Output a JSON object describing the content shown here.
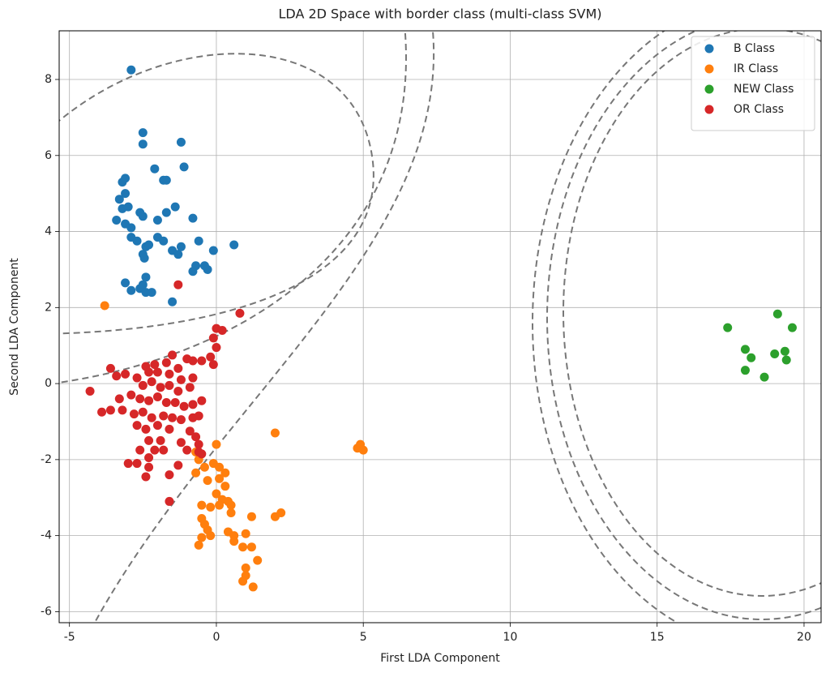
{
  "chart_data": {
    "type": "scatter",
    "title": "LDA 2D Space with border class (multi-class SVM)",
    "x_label": "First LDA Component",
    "y_label": "Second LDA Component",
    "xlim": [
      -5.35,
      20.58
    ],
    "ylim": [
      -6.29,
      9.28
    ],
    "xticks": [
      -5,
      0,
      5,
      10,
      15,
      20
    ],
    "yticks": [
      -6,
      -4,
      -2,
      0,
      2,
      4,
      6,
      8
    ],
    "grid": true,
    "legend": "upper right",
    "series": [
      {
        "name": "B Class",
        "color": "#1f77b4",
        "x": [
          -2.9,
          -2.5,
          -2.5,
          -1.2,
          -1.1,
          -2.1,
          -1.8,
          -1.7,
          -3.2,
          -3.1,
          -3.1,
          -3.3,
          -3.2,
          -3.0,
          -2.6,
          -2.5,
          -1.4,
          -1.7,
          -2.0,
          -0.8,
          -3.4,
          -3.1,
          -2.9,
          -2.9,
          -2.7,
          -2.4,
          -2.3,
          -2.5,
          -2.45,
          -2.0,
          -1.8,
          -1.5,
          -1.2,
          -1.3,
          -0.6,
          -0.1,
          0.6,
          -0.7,
          -0.4,
          -0.8,
          -0.3,
          -3.1,
          -2.9,
          -2.6,
          -2.5,
          -2.4,
          -2.2,
          -2.4,
          -1.5
        ],
        "values": [
          8.25,
          6.6,
          6.3,
          6.35,
          5.7,
          5.65,
          5.35,
          5.35,
          5.3,
          5.4,
          5.0,
          4.85,
          4.6,
          4.65,
          4.5,
          4.4,
          4.65,
          4.5,
          4.3,
          4.35,
          4.3,
          4.2,
          4.1,
          3.85,
          3.75,
          3.6,
          3.65,
          3.4,
          3.3,
          3.85,
          3.75,
          3.5,
          3.6,
          3.4,
          3.75,
          3.5,
          3.65,
          3.1,
          3.1,
          2.95,
          3.0,
          2.65,
          2.45,
          2.5,
          2.6,
          2.4,
          2.4,
          2.8,
          2.15
        ]
      },
      {
        "name": "IR Class",
        "color": "#ff7f0e",
        "x": [
          -3.8,
          0.0,
          -0.7,
          -0.6,
          -0.4,
          -0.7,
          -0.1,
          0.1,
          0.3,
          -0.3,
          0.1,
          0.3,
          0.0,
          0.2,
          0.1,
          0.4,
          0.5,
          -0.5,
          -0.2,
          0.5,
          -0.5,
          -0.4,
          -0.3,
          -0.2,
          -0.5,
          -0.6,
          0.4,
          0.6,
          0.6,
          1.0,
          1.2,
          0.9,
          1.4,
          1.0,
          0.9,
          1.0,
          1.25,
          1.2,
          2.0,
          2.2,
          2.0,
          4.8,
          4.9,
          5.0
        ],
        "values": [
          2.05,
          -1.6,
          -1.8,
          -2.0,
          -2.2,
          -2.35,
          -2.1,
          -2.2,
          -2.35,
          -2.55,
          -2.5,
          -2.7,
          -2.9,
          -3.05,
          -3.2,
          -3.1,
          -3.2,
          -3.2,
          -3.25,
          -3.4,
          -3.55,
          -3.7,
          -3.85,
          -4.0,
          -4.05,
          -4.25,
          -3.9,
          -4.0,
          -4.15,
          -3.95,
          -4.3,
          -4.3,
          -4.65,
          -4.85,
          -5.2,
          -5.05,
          -5.35,
          -3.5,
          -3.5,
          -3.4,
          -1.3,
          -1.7,
          -1.6,
          -1.75
        ]
      },
      {
        "name": "NEW Class",
        "color": "#2ca02c",
        "x": [
          17.4,
          19.1,
          19.6,
          18.0,
          18.2,
          18.0,
          19.0,
          19.35,
          19.4,
          18.65
        ],
        "values": [
          1.47,
          1.83,
          1.47,
          0.9,
          0.68,
          0.35,
          0.78,
          0.85,
          0.62,
          0.17
        ]
      },
      {
        "name": "OR Class",
        "color": "#d62728",
        "x": [
          -1.3,
          0.8,
          0.0,
          0.2,
          -0.1,
          0.0,
          -0.2,
          -0.5,
          -0.8,
          -1.0,
          -0.1,
          -1.5,
          -1.7,
          -2.1,
          -2.4,
          -2.3,
          -2.0,
          -1.6,
          -1.3,
          -1.2,
          -0.8,
          -3.6,
          -3.4,
          -3.1,
          -2.7,
          -2.5,
          -2.2,
          -1.9,
          -1.6,
          -1.3,
          -0.9,
          -4.3,
          -3.3,
          -2.9,
          -2.6,
          -2.3,
          -2.0,
          -1.7,
          -1.4,
          -1.1,
          -0.8,
          -0.5,
          -3.6,
          -3.9,
          -3.2,
          -2.8,
          -2.5,
          -2.2,
          -1.8,
          -1.5,
          -1.2,
          -0.8,
          -0.6,
          -2.7,
          -2.4,
          -2.0,
          -1.6,
          -0.9,
          -0.7,
          -2.3,
          -1.9,
          -1.2,
          -0.6,
          -2.6,
          -2.1,
          -1.8,
          -1.0,
          -0.6,
          -2.3,
          -3.0,
          -2.7,
          -2.3,
          -2.4,
          -1.6,
          -1.3,
          -1.6,
          -0.5
        ],
        "values": [
          2.6,
          1.85,
          1.45,
          1.4,
          1.2,
          0.95,
          0.7,
          0.6,
          0.6,
          0.65,
          0.5,
          0.75,
          0.55,
          0.5,
          0.45,
          0.3,
          0.3,
          0.25,
          0.4,
          0.1,
          0.15,
          0.4,
          0.2,
          0.25,
          0.15,
          -0.05,
          0.05,
          -0.1,
          -0.05,
          -0.2,
          -0.1,
          -0.2,
          -0.4,
          -0.3,
          -0.4,
          -0.45,
          -0.35,
          -0.5,
          -0.5,
          -0.6,
          -0.55,
          -0.45,
          -0.7,
          -0.75,
          -0.7,
          -0.8,
          -0.75,
          -0.9,
          -0.85,
          -0.9,
          -0.95,
          -0.9,
          -0.85,
          -1.1,
          -1.2,
          -1.1,
          -1.2,
          -1.25,
          -1.4,
          -1.5,
          -1.5,
          -1.55,
          -1.6,
          -1.75,
          -1.75,
          -1.75,
          -1.75,
          -1.8,
          -1.95,
          -2.1,
          -2.1,
          -2.2,
          -2.45,
          -2.4,
          -2.15,
          -3.1,
          -1.85
        ]
      }
    ]
  }
}
